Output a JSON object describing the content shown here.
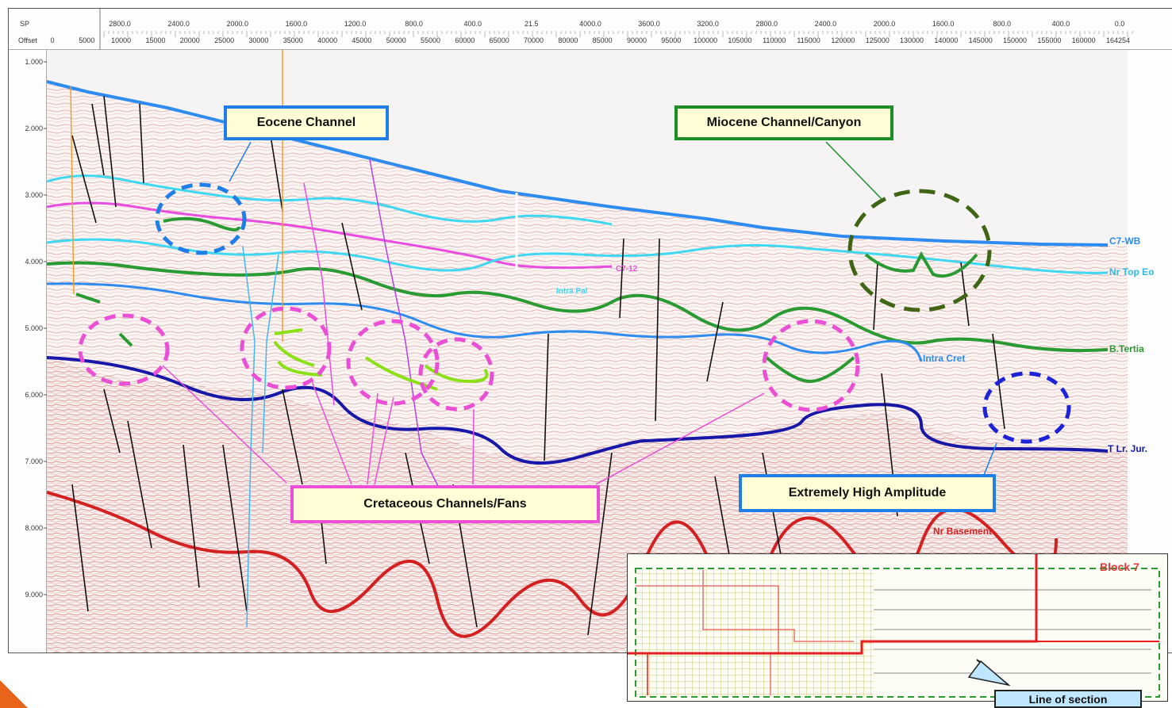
{
  "axis": {
    "sp_prefix": "SP",
    "offset_prefix": "Offset",
    "sp_ticks": [
      "2800.0",
      "2400.0",
      "2000.0",
      "1600.0",
      "1200.0",
      "800.0",
      "400.0",
      "21.5",
      "4000.0",
      "3600.0",
      "3200.0",
      "2800.0",
      "2400.0",
      "2000.0",
      "1600.0",
      "800.0",
      "400.0",
      "0.0"
    ],
    "offset_ticks": [
      "0",
      "5000",
      "10000",
      "15000",
      "20000",
      "25000",
      "30000",
      "35000",
      "40000",
      "45000",
      "50000",
      "55000",
      "60000",
      "65000",
      "70000",
      "80000",
      "85000",
      "90000",
      "95000",
      "100000",
      "105000",
      "110000",
      "115000",
      "120000",
      "125000",
      "130000",
      "140000",
      "145000",
      "150000",
      "155000",
      "160000",
      "164254"
    ],
    "depth_ticks": [
      "1.000",
      "2.000",
      "3.000",
      "4.000",
      "5.000",
      "6.000",
      "7.000",
      "8.000",
      "9.000"
    ]
  },
  "callouts": {
    "eocene": "Eocene Channel",
    "miocene": "Miocene Channel/Canyon",
    "cretaceous": "Cretaceous Channels/Fans",
    "amplitude": "Extremely High Amplitude"
  },
  "horizons": {
    "wb": "C7-WB",
    "top_eo": "Nr Top Eo",
    "tertiary": "B.Tertia",
    "intra_cret": "Intra Cret",
    "lr_jur": "T Lr. Jur.",
    "basement": "Nr Basement",
    "intra_pal": "Intra Pal",
    "c7_12": "C7-12"
  },
  "inset": {
    "block": "Block 7",
    "line_of_section": "Line of section"
  },
  "colors": {
    "water_bottom": "#2e8cf0",
    "cyan_horizon": "#3fd8f0",
    "magenta_horizon": "#e84de0",
    "green_horizon": "#2a9a32",
    "dark_blue_horizon": "#1717a8",
    "basement_red": "#d42020",
    "callout_fill": "#fffdd6",
    "accent_orange": "#e8641a"
  }
}
